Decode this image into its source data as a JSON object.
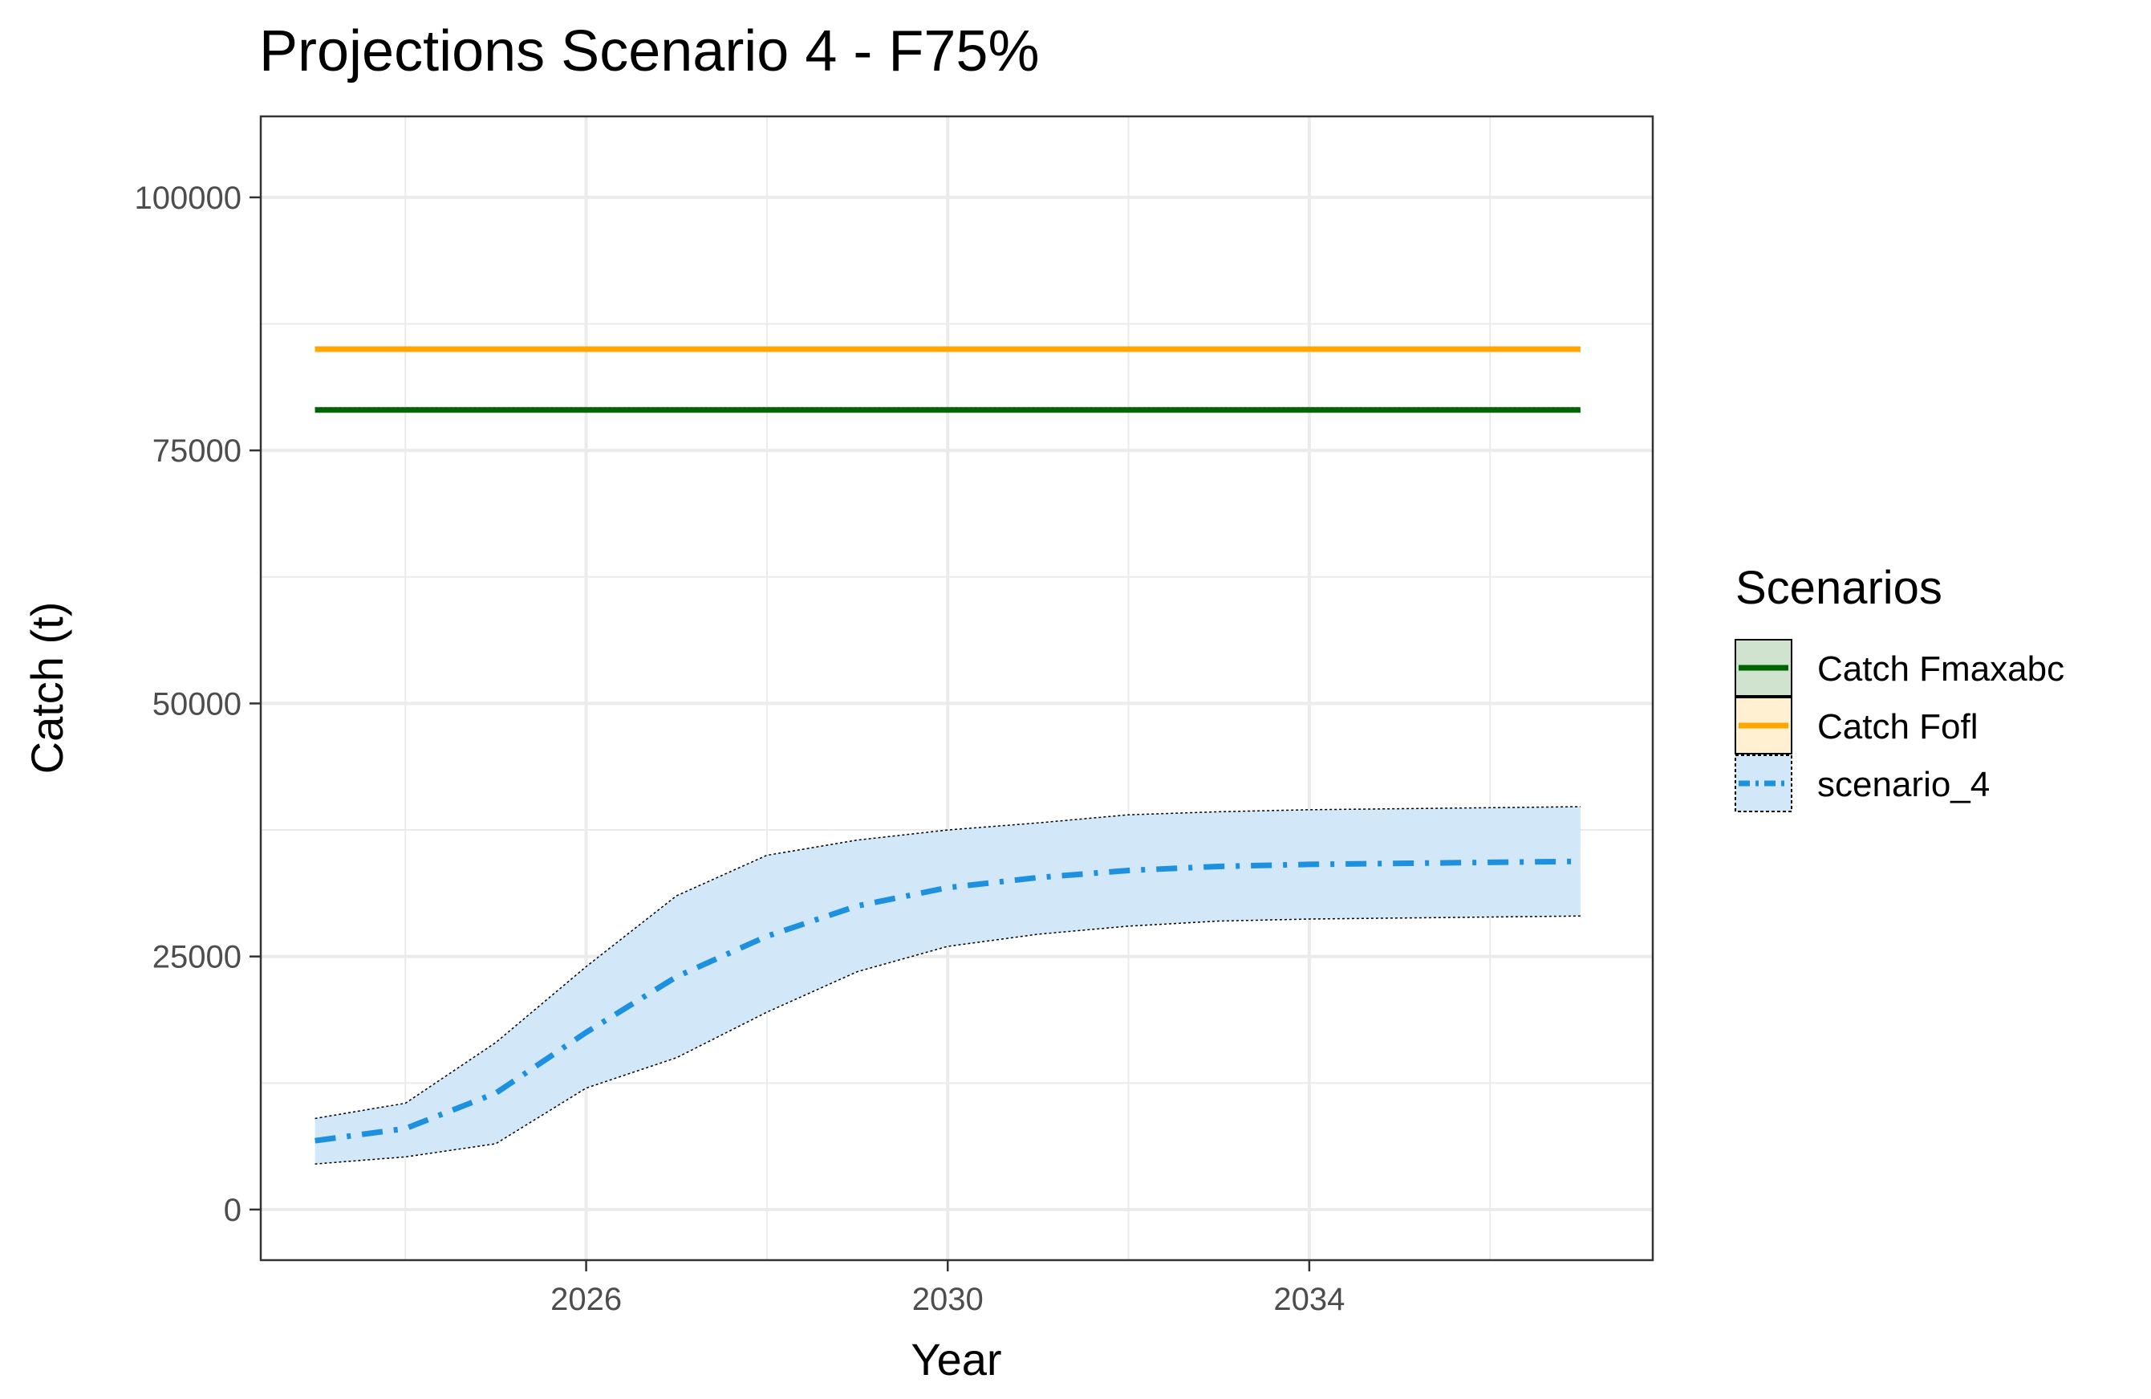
{
  "chart_data": {
    "type": "line",
    "title": "Projections Scenario 4 - F75%",
    "xlabel": "Year",
    "ylabel": "Catch (t)",
    "xlim": [
      2022.4,
      2037.8
    ],
    "ylim": [
      -5000,
      108000
    ],
    "x_ticks": [
      2026,
      2030,
      2034
    ],
    "x_tick_labels": [
      "2026",
      "2030",
      "2034"
    ],
    "x_minor": [
      2024,
      2028,
      2032,
      2036
    ],
    "y_ticks": [
      0,
      25000,
      50000,
      75000,
      100000
    ],
    "y_tick_labels": [
      "0",
      "25000",
      "50000",
      "75000",
      "100000"
    ],
    "y_minor": [
      12500,
      37500,
      62500,
      87500
    ],
    "grid": true,
    "legend_title": "Scenarios",
    "legend_position": "right",
    "series": [
      {
        "name": "Catch Fmaxabc",
        "color": "#006400",
        "fill": "#cfe3cf",
        "line_style": "solid",
        "x": [
          2023,
          2024,
          2025,
          2026,
          2027,
          2028,
          2029,
          2030,
          2031,
          2032,
          2033,
          2034,
          2035,
          2036,
          2037
        ],
        "values": [
          79000,
          79000,
          79000,
          79000,
          79000,
          79000,
          79000,
          79000,
          79000,
          79000,
          79000,
          79000,
          79000,
          79000,
          79000
        ],
        "lower": [
          78800,
          78800,
          78800,
          78800,
          78800,
          78800,
          78800,
          78800,
          78800,
          78800,
          78800,
          78800,
          78800,
          78800,
          78800
        ],
        "upper": [
          79200,
          79200,
          79200,
          79200,
          79200,
          79200,
          79200,
          79200,
          79200,
          79200,
          79200,
          79200,
          79200,
          79200,
          79200
        ]
      },
      {
        "name": "Catch Fofl",
        "color": "#ffa500",
        "fill": "#fff0d2",
        "line_style": "solid",
        "x": [
          2023,
          2024,
          2025,
          2026,
          2027,
          2028,
          2029,
          2030,
          2031,
          2032,
          2033,
          2034,
          2035,
          2036,
          2037
        ],
        "values": [
          85000,
          85000,
          85000,
          85000,
          85000,
          85000,
          85000,
          85000,
          85000,
          85000,
          85000,
          85000,
          85000,
          85000,
          85000
        ],
        "lower": [
          84800,
          84800,
          84800,
          84800,
          84800,
          84800,
          84800,
          84800,
          84800,
          84800,
          84800,
          84800,
          84800,
          84800,
          84800
        ],
        "upper": [
          85200,
          85200,
          85200,
          85200,
          85200,
          85200,
          85200,
          85200,
          85200,
          85200,
          85200,
          85200,
          85200,
          85200,
          85200
        ]
      },
      {
        "name": "scenario_4",
        "color": "#1e90e0",
        "fill": "#d2e8f8",
        "line_style": "dotdash",
        "x": [
          2023,
          2024,
          2025,
          2026,
          2027,
          2028,
          2029,
          2030,
          2031,
          2032,
          2033,
          2034,
          2035,
          2036,
          2037
        ],
        "values": [
          6800,
          8000,
          11500,
          17500,
          23000,
          27000,
          30000,
          31800,
          32800,
          33500,
          33900,
          34100,
          34200,
          34300,
          34400
        ],
        "lower": [
          4500,
          5200,
          6500,
          12000,
          15000,
          19500,
          23500,
          26000,
          27200,
          28000,
          28500,
          28700,
          28800,
          28900,
          29000
        ],
        "upper": [
          9000,
          10500,
          16500,
          24000,
          31000,
          35000,
          36500,
          37500,
          38200,
          39000,
          39300,
          39500,
          39600,
          39700,
          39800
        ]
      }
    ]
  }
}
